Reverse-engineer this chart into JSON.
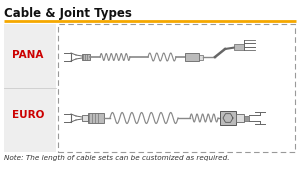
{
  "title": "Cable & Joint Types",
  "title_color": "#111111",
  "title_fontsize": 8.5,
  "underline_color": "#F5A800",
  "note_text": "Note: The length of cable sets can be customized as required.",
  "note_fontsize": 5.2,
  "pana_label": "PANA",
  "euro_label": "EURO",
  "label_color": "#CC0000",
  "label_fontsize": 7.5,
  "bg_color": "#FFFFFF",
  "left_panel_color": "#EEEEEE",
  "cable_color": "#888888",
  "connector_light": "#DDDDDD",
  "connector_mid": "#BBBBBB",
  "connector_dark": "#999999",
  "border_color": "#999999"
}
